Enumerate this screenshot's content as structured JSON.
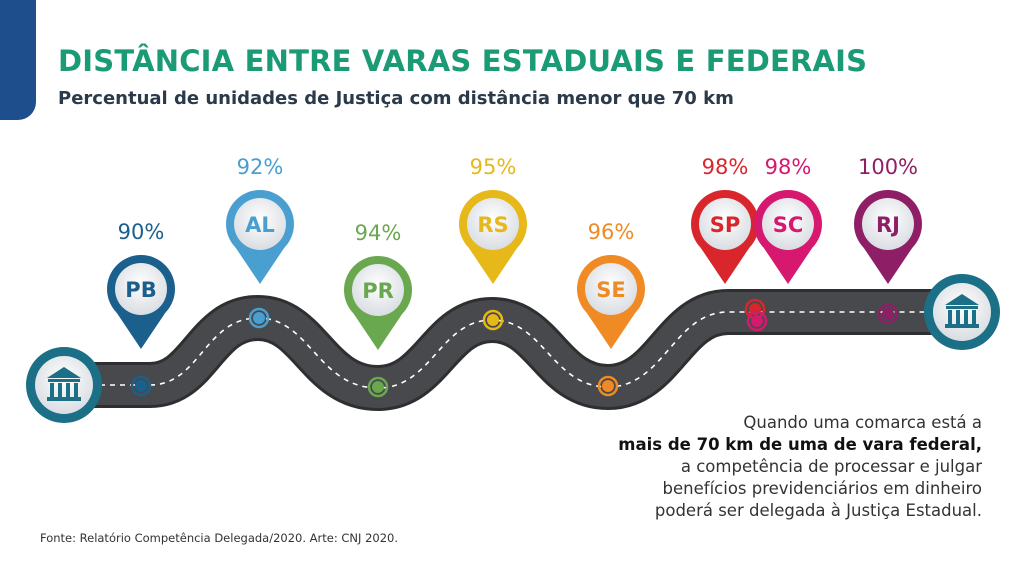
{
  "header": {
    "title": "DISTÂNCIA ENTRE VARAS ESTADUAIS E FEDERAIS",
    "subtitle": "Percentual de unidades de Justiça com distância menor que 70 km"
  },
  "chart_data": {
    "type": "bar",
    "categories": [
      "PB",
      "AL",
      "PR",
      "RS",
      "SE",
      "SP",
      "SC",
      "RJ"
    ],
    "values": [
      90,
      92,
      94,
      95,
      96,
      98,
      98,
      100
    ],
    "value_labels": [
      "90%",
      "92%",
      "94%",
      "95%",
      "96%",
      "98%",
      "98%",
      "100%"
    ],
    "unit": "%",
    "colors": [
      "#1b5f8c",
      "#4a9fd1",
      "#6aa84f",
      "#e6b819",
      "#ef8a24",
      "#d9262c",
      "#d6186f",
      "#8e1f66"
    ]
  },
  "note": {
    "line1": "Quando uma comarca está a",
    "line2": "mais de 70 km de uma de vara federal,",
    "line3": "a competência de processar e julgar",
    "line4": "benefícios previdenciários em dinheiro",
    "line5": "poderá ser delegada à Justiça Estadual."
  },
  "source": "Fonte: Relatório Competência Delegada/2020. Arte: CNJ 2020.",
  "icons": {
    "start": "courthouse-icon",
    "end": "courthouse-icon"
  },
  "colors": {
    "title": "#1a9a75",
    "road": "#3f4042",
    "courthouse_badge": "#1b6f86"
  }
}
